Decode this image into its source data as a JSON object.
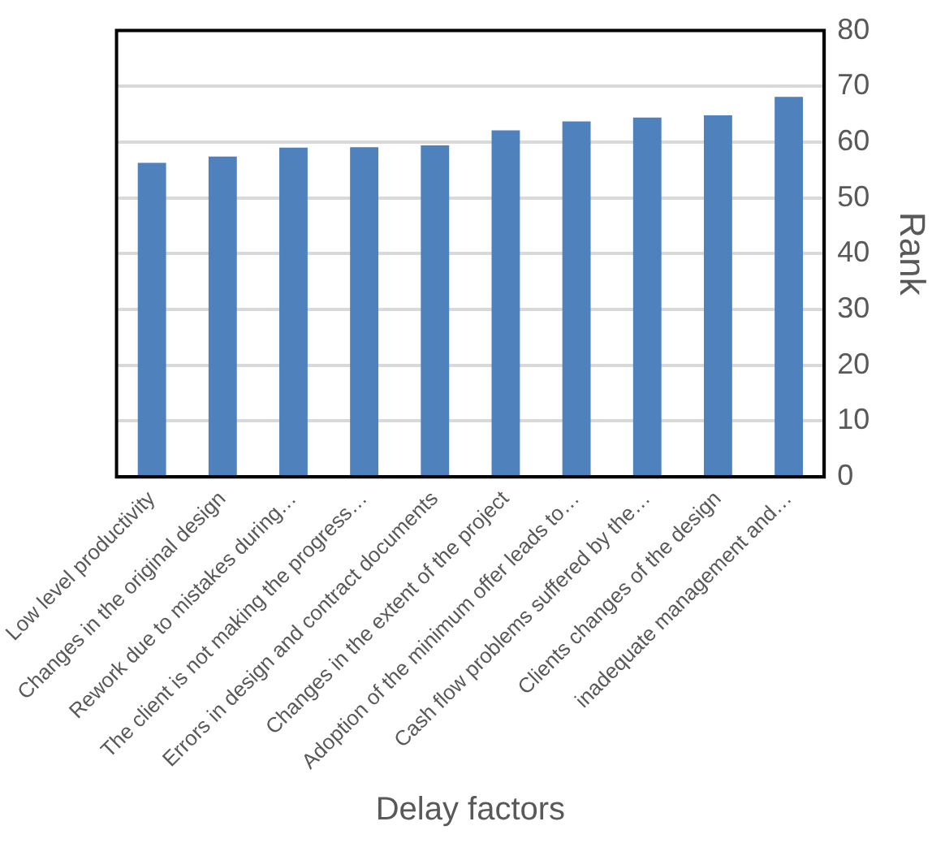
{
  "chart_data": {
    "type": "bar",
    "xlabel": "Delay factors",
    "ylabel": "Rank",
    "categories": [
      "Low level productivity",
      "Changes in the original design",
      "Rework due to mistakes during…",
      "The client is not making the progress…",
      "Errors in design and contract documents",
      "Changes in the extent of the project",
      "Adoption of the minimum offer leads to…",
      "Cash flow problems suffered by the…",
      "Clients changes of the design",
      "inadequate management and…"
    ],
    "values": [
      56.3,
      57.4,
      59.0,
      59.1,
      59.4,
      62.1,
      63.7,
      64.4,
      64.8,
      68.1
    ],
    "color": "#4f81bd",
    "ylim": [
      0,
      80
    ],
    "yticks": [
      0,
      10,
      20,
      30,
      40,
      50,
      60,
      70,
      80
    ],
    "grid": "y",
    "legend": false
  }
}
